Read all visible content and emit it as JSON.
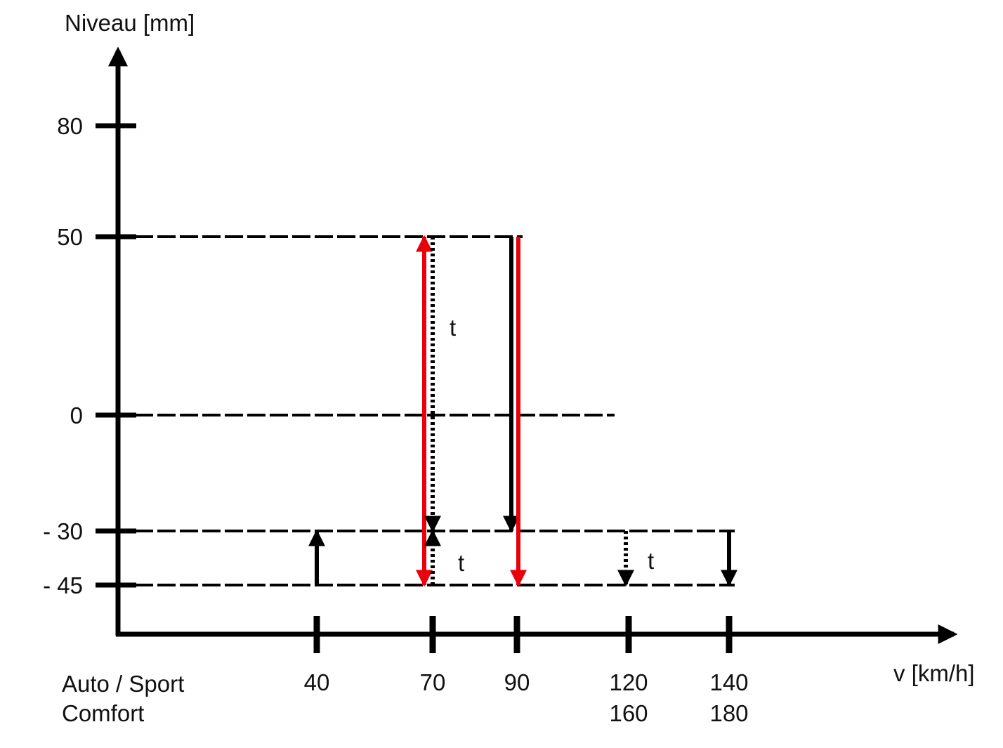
{
  "chart_data": {
    "type": "line",
    "xlabel": "v [km/h]",
    "ylabel": "Niveau [mm]",
    "y_ticks": [
      {
        "value": 80,
        "label": "80"
      },
      {
        "value": 50,
        "label": "50"
      },
      {
        "value": 0,
        "label": "0"
      },
      {
        "value": -30,
        "label": "- 30"
      },
      {
        "value": -45,
        "label": "- 45"
      }
    ],
    "x_row_labels": [
      "Auto / Sport",
      "Comfort"
    ],
    "x_ticks": [
      {
        "auto_sport": "40",
        "comfort": ""
      },
      {
        "auto_sport": "70",
        "comfort": ""
      },
      {
        "auto_sport": "90",
        "comfort": ""
      },
      {
        "auto_sport": "120",
        "comfort": "160"
      },
      {
        "auto_sport": "140",
        "comfort": "180"
      }
    ],
    "reference_levels": [
      {
        "level": 50,
        "from_speed": 0,
        "to_speed": 90
      },
      {
        "level": 0,
        "from_speed": 0,
        "to_speed": 120
      },
      {
        "level": -30,
        "from_speed": 0,
        "to_speed": 140
      },
      {
        "level": -45,
        "from_speed": 0,
        "to_speed": 140
      }
    ],
    "transitions": [
      {
        "speed": "40",
        "from": -45,
        "to": -30,
        "color": "#000000",
        "style": "solid",
        "label": ""
      },
      {
        "speed": "70",
        "from": -45,
        "to": 50,
        "color": "#e8000b",
        "style": "solid",
        "label": ""
      },
      {
        "speed": "70",
        "from": 50,
        "to": -45,
        "color": "#e8000b",
        "style": "solid",
        "label": ""
      },
      {
        "speed": "70",
        "from": 50,
        "to": -30,
        "color": "#000000",
        "style": "dotted",
        "label": "t"
      },
      {
        "speed": "70",
        "from": -45,
        "to": -30,
        "color": "#000000",
        "style": "dotted",
        "label": "t"
      },
      {
        "speed": "90",
        "from": 50,
        "to": -30,
        "color": "#000000",
        "style": "solid",
        "label": ""
      },
      {
        "speed": "90",
        "from": 50,
        "to": -45,
        "color": "#e8000b",
        "style": "solid",
        "label": ""
      },
      {
        "speed": "120",
        "from": -30,
        "to": -45,
        "color": "#000000",
        "style": "dotted",
        "label": "t"
      },
      {
        "speed": "140",
        "from": -30,
        "to": -45,
        "color": "#000000",
        "style": "solid",
        "label": ""
      }
    ],
    "colors": {
      "axis": "#000000",
      "highlight": "#e8000b"
    }
  }
}
